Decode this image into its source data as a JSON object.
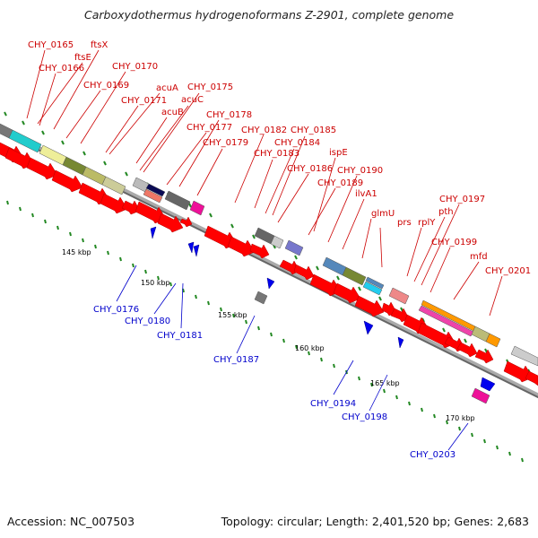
{
  "title": "Carboxydothermus hydrogenoformans Z-2901, complete genome",
  "footer": {
    "accession": "Accession: NC_007503",
    "summary": "Topology: circular; Length: 2,401,520 bp; Genes: 2,683"
  },
  "colors": {
    "forward_label": "#cc0000",
    "reverse_label": "#0000cc",
    "forward_gene": "#ff0000",
    "reverse_gene": "#0000ff",
    "backbone": "#888888",
    "tick": "#228822"
  },
  "ruler_labels": [
    "145 kbp",
    "150 kbp",
    "155 kbp",
    "160 kbp",
    "165 kbp",
    "170 kbp"
  ],
  "forward_labels": [
    "CHY_0165",
    "ftsX",
    "ftsE",
    "CHY_0166",
    "CHY_0170",
    "CHY_0169",
    "acuA",
    "CHY_0175",
    "CHY_0171",
    "acuC",
    "acuB",
    "CHY_0178",
    "CHY_0177",
    "CHY_0182",
    "CHY_0185",
    "CHY_0179",
    "CHY_0184",
    "CHY_0183",
    "ispE",
    "CHY_0186",
    "CHY_0190",
    "CHY_0189",
    "ilvA1",
    "CHY_0197",
    "glmU",
    "pth",
    "prs",
    "rplY",
    "CHY_0199",
    "mfd",
    "CHY_0201"
  ],
  "reverse_labels": [
    "CHY_0176",
    "CHY_0180",
    "CHY_0181",
    "CHY_0187",
    "CHY_0194",
    "CHY_0198",
    "CHY_0203"
  ]
}
